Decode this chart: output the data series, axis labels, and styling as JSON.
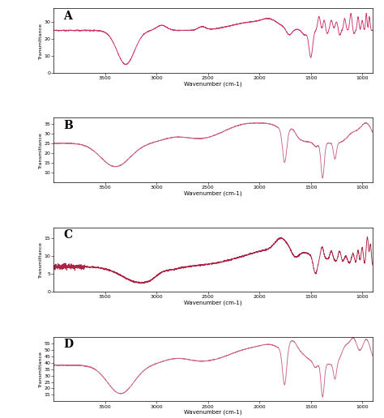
{
  "panels": [
    "A",
    "B",
    "C",
    "D"
  ],
  "xlabel": "Wavenumber (cm-1)",
  "ylabel": "Transmittance",
  "line_color_A": "#cc3366",
  "line_color_B": "#cc6688",
  "line_color_C": "#aa2244",
  "line_color_D": "#cc6688",
  "background": "#ffffff",
  "ylim_A": [
    0,
    38
  ],
  "ylim_B": [
    5,
    38
  ],
  "ylim_C": [
    0,
    18
  ],
  "ylim_D": [
    10,
    60
  ],
  "yticks_A": [
    0,
    10,
    20,
    30
  ],
  "yticks_B": [
    10,
    15,
    20,
    25,
    30,
    35
  ],
  "yticks_C": [
    0,
    5,
    10,
    15
  ],
  "yticks_D": [
    15,
    20,
    25,
    30,
    35,
    40,
    45,
    50,
    55
  ],
  "xticks": [
    3500,
    3000,
    2500,
    2000,
    1500,
    1000
  ]
}
